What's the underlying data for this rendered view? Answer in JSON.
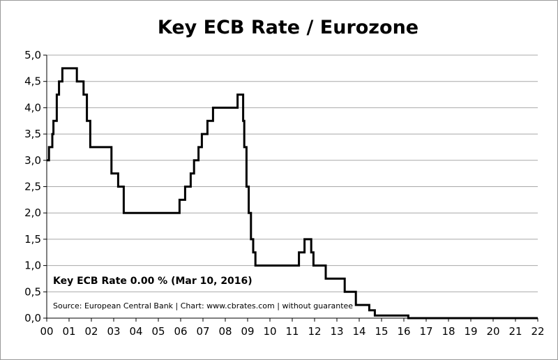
{
  "chart_data": {
    "type": "line",
    "title": "Key ECB Rate / Eurozone",
    "xlabel": "",
    "ylabel": "",
    "xlim": [
      2000,
      2022
    ],
    "ylim": [
      0,
      5
    ],
    "grid": "horizontal",
    "x_ticks": [
      "00",
      "01",
      "02",
      "03",
      "04",
      "05",
      "06",
      "07",
      "08",
      "09",
      "10",
      "11",
      "12",
      "13",
      "14",
      "15",
      "16",
      "17",
      "18",
      "19",
      "20",
      "21",
      "22"
    ],
    "y_ticks": [
      "0,0",
      "0,5",
      "1,0",
      "1,5",
      "2,0",
      "2,5",
      "3,0",
      "3,5",
      "4,0",
      "4,5",
      "5,0"
    ],
    "annotation": "Key ECB Rate 0.00 % (Mar 10, 2016)",
    "source": "Source: European Central Bank | Chart: www.cbrates.com  | without guarantee",
    "line_color": "#000000",
    "series": [
      {
        "step": true,
        "x": [
          2000.0,
          2000.1,
          2000.25,
          2000.3,
          2000.45,
          2000.55,
          2000.7,
          2000.85,
          2001.35,
          2001.65,
          2001.8,
          2001.85,
          2001.95,
          2002.9,
          2003.2,
          2003.45,
          2005.95,
          2006.2,
          2006.45,
          2006.6,
          2006.8,
          2006.95,
          2007.2,
          2007.45,
          2008.55,
          2008.8,
          2008.85,
          2008.95,
          2009.05,
          2009.15,
          2009.25,
          2009.35,
          2011.3,
          2011.55,
          2011.85,
          2011.95,
          2012.5,
          2013.35,
          2013.85,
          2014.45,
          2014.7,
          2016.2,
          2022.0
        ],
        "y": [
          3.0,
          3.25,
          3.5,
          3.75,
          4.25,
          4.5,
          4.75,
          4.75,
          4.5,
          4.25,
          3.75,
          3.75,
          3.25,
          2.75,
          2.5,
          2.0,
          2.25,
          2.5,
          2.75,
          3.0,
          3.25,
          3.5,
          3.75,
          4.0,
          4.25,
          3.75,
          3.25,
          2.5,
          2.0,
          1.5,
          1.25,
          1.0,
          1.25,
          1.5,
          1.25,
          1.0,
          0.75,
          0.5,
          0.25,
          0.15,
          0.05,
          0.0,
          0.0
        ]
      }
    ]
  }
}
